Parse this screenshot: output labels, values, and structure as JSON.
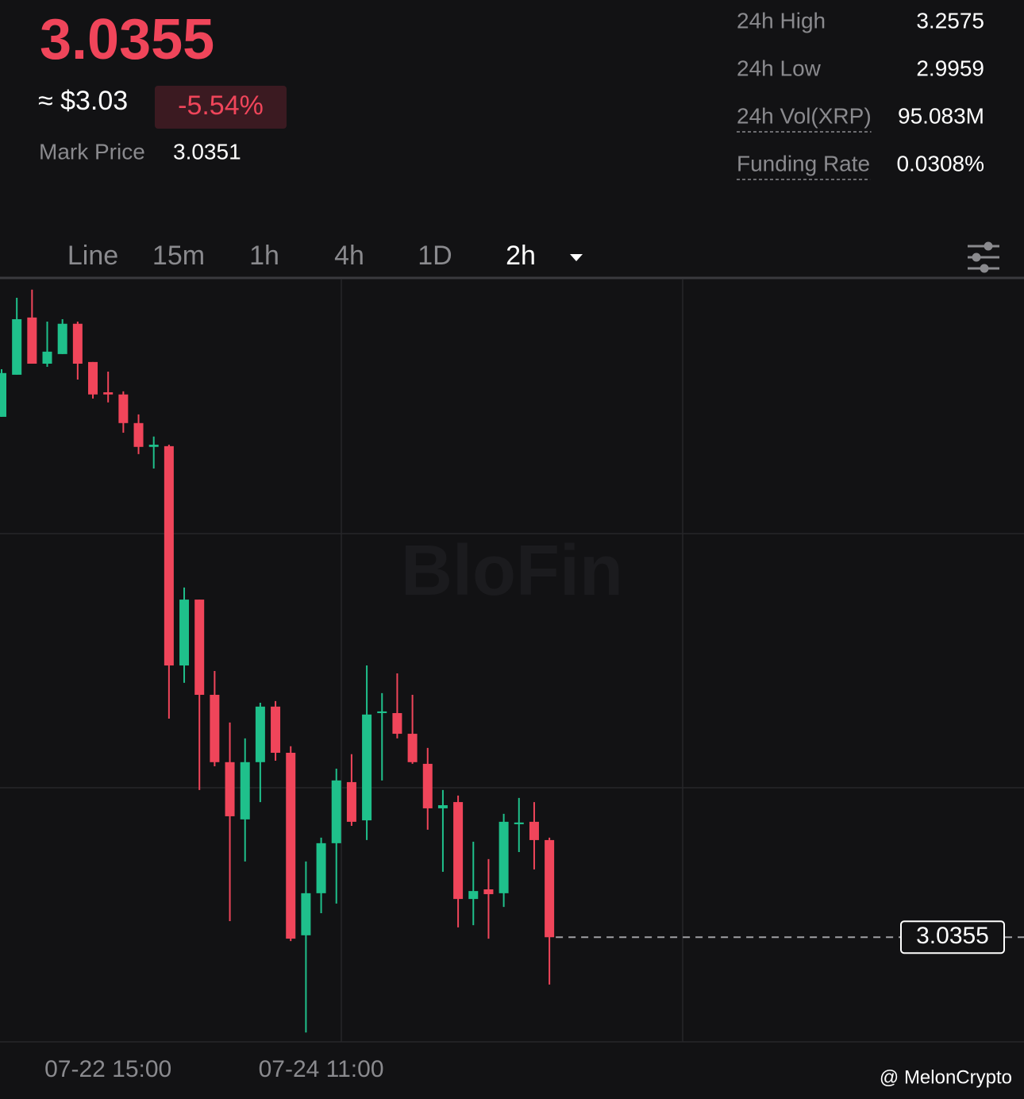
{
  "header": {
    "price": "3.0355",
    "usd": "≈ $3.03",
    "change": "-5.54%",
    "mark_price_label": "Mark Price",
    "mark_price": "3.0351"
  },
  "stats": [
    {
      "label": "24h High",
      "value": "3.2575"
    },
    {
      "label": "24h Low",
      "value": "2.9959"
    },
    {
      "label": "24h Vol(XRP)",
      "value": "95.083M"
    },
    {
      "label": "Funding Rate",
      "value": "0.0308%"
    }
  ],
  "tabs": [
    "Line",
    "15m",
    "1h",
    "4h",
    "1D",
    "2h"
  ],
  "watermark": "BloFin",
  "footer": "@ MelonCrypto",
  "chart_data": {
    "type": "candlestick",
    "categories": [
      null,
      null,
      null,
      null,
      "07-22 15:00",
      null,
      null,
      null,
      null,
      null,
      null,
      null,
      null,
      null,
      null,
      null,
      null,
      null,
      "07-24 11:00",
      null,
      null,
      null,
      null,
      null,
      null,
      null,
      null,
      null,
      null,
      null,
      null,
      null,
      null,
      null,
      null,
      null,
      null
    ],
    "open": [
      3.2519,
      3.2694,
      3.2932,
      3.274,
      3.278,
      3.2906,
      3.2747,
      3.2621,
      3.2612,
      3.2493,
      3.2394,
      3.2397,
      3.1485,
      3.1759,
      3.1363,
      3.1083,
      3.0845,
      3.1083,
      3.1314,
      3.1122,
      3.0363,
      3.0538,
      3.0746,
      3.1,
      3.0841,
      3.1287,
      3.1287,
      3.1201,
      3.1076,
      3.0891,
      3.0917,
      3.0514,
      3.0554,
      3.0538,
      3.0825,
      3.0835,
      3.0759
    ],
    "high": [
      3.2717,
      3.3014,
      3.3048,
      3.2915,
      3.2925,
      3.2915,
      3.2747,
      3.2707,
      3.2625,
      3.2529,
      3.2437,
      3.2403,
      3.1809,
      3.1759,
      3.1462,
      3.1248,
      3.1182,
      3.133,
      3.1337,
      3.1149,
      3.067,
      3.0769,
      3.1056,
      3.1116,
      3.1485,
      3.137,
      3.1452,
      3.1363,
      3.1142,
      3.0967,
      3.0944,
      3.0752,
      3.068,
      3.0868,
      3.0934,
      3.0917,
      3.0769
    ],
    "low": [
      3.2519,
      3.2694,
      3.274,
      3.2727,
      3.278,
      3.2674,
      3.2595,
      3.2579,
      3.2453,
      3.2364,
      3.2304,
      3.1264,
      3.1413,
      3.0967,
      3.1066,
      3.0422,
      3.067,
      3.0917,
      3.1089,
      3.0339,
      2.9959,
      3.0455,
      3.0495,
      3.0818,
      3.0759,
      3.1007,
      3.1182,
      3.1076,
      3.0802,
      3.0627,
      3.0396,
      3.0405,
      3.0349,
      3.0481,
      3.0709,
      3.0637,
      3.0158
    ],
    "close": [
      3.2701,
      3.2925,
      3.274,
      3.279,
      3.2906,
      3.274,
      3.2612,
      3.2612,
      3.2493,
      3.2394,
      3.2403,
      3.1485,
      3.1759,
      3.1363,
      3.1083,
      3.0858,
      3.1083,
      3.1314,
      3.1122,
      3.0349,
      3.0538,
      3.0746,
      3.1007,
      3.0835,
      3.1281,
      3.1294,
      3.1201,
      3.1083,
      3.0891,
      3.0904,
      3.0514,
      3.0547,
      3.0534,
      3.0835,
      3.0832,
      3.0759,
      3.0355
    ],
    "ylim": [
      2.992,
      3.309
    ],
    "last_price": 3.0355,
    "up_color": "#1fc08b",
    "down_color": "#f0455a",
    "grid": true
  }
}
